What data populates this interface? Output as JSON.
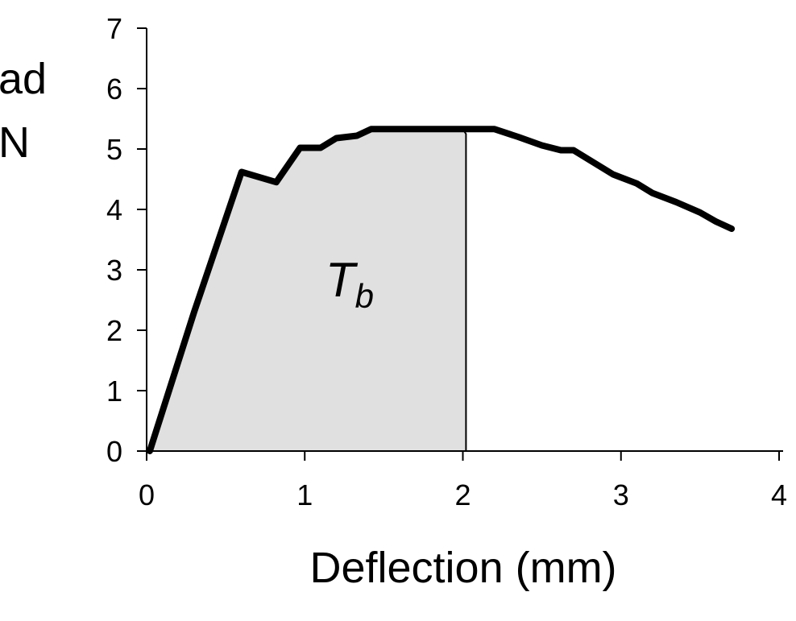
{
  "chart_data": {
    "type": "line",
    "title": "",
    "xlabel": "Deflection (mm)",
    "ylabel": "Load (kN)",
    "ylabel_visible_lines": [
      "ad",
      "N"
    ],
    "xlim": [
      0,
      4
    ],
    "ylim": [
      0,
      7
    ],
    "xticks": [
      0,
      1,
      2,
      3,
      4
    ],
    "yticks": [
      0,
      1,
      2,
      3,
      4,
      5,
      6,
      7
    ],
    "grid": false,
    "legend": "none",
    "series": [
      {
        "x": [
          0.02,
          0.3,
          0.6,
          0.82,
          0.97,
          1.1,
          1.2,
          1.33,
          1.42,
          1.6,
          1.8,
          2.0,
          2.2,
          2.35,
          2.5,
          2.62,
          2.7,
          2.8,
          2.95,
          3.1,
          3.2,
          3.35,
          3.5,
          3.6,
          3.7
        ],
        "y": [
          0.0,
          2.3,
          4.62,
          4.45,
          5.02,
          5.02,
          5.18,
          5.22,
          5.33,
          5.33,
          5.33,
          5.33,
          5.33,
          5.2,
          5.06,
          4.98,
          4.98,
          4.82,
          4.58,
          4.43,
          4.27,
          4.12,
          3.95,
          3.8,
          3.68
        ]
      }
    ],
    "shaded_region": {
      "x_from": 0,
      "x_to": 2.02,
      "label_main": "T",
      "label_sub": "b",
      "fill_color": "#e0e0e0"
    },
    "colors": {
      "line": "#000000",
      "axis": "#000000",
      "fill": "#e0e0e0"
    }
  }
}
